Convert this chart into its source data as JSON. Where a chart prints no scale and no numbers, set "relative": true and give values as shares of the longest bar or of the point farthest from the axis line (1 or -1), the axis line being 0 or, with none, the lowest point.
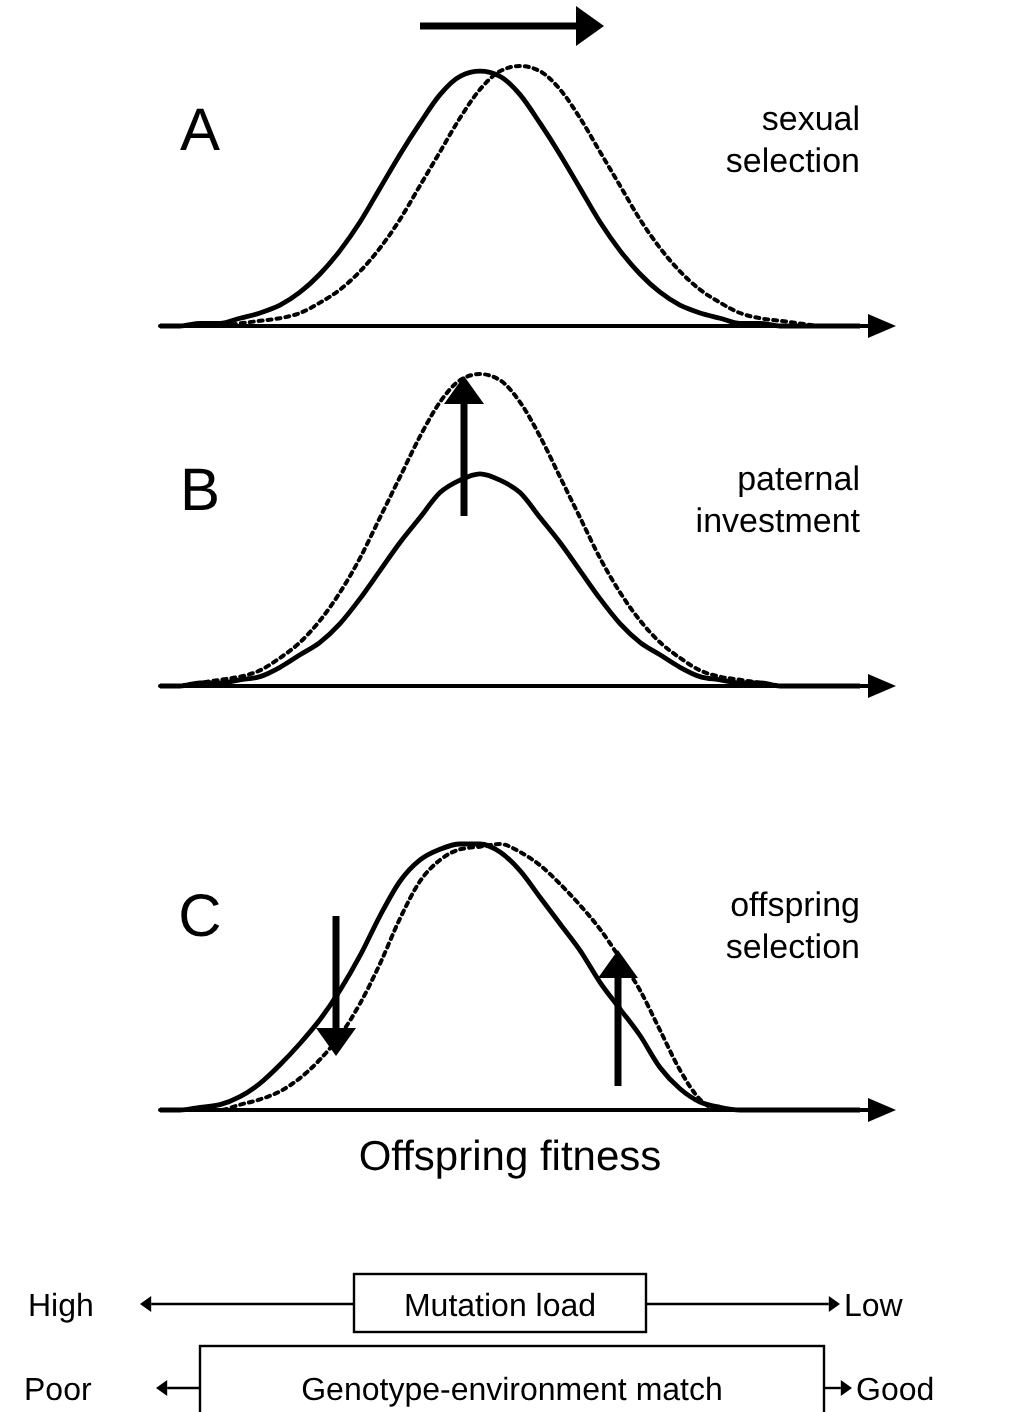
{
  "chart_data": [
    {
      "type": "line",
      "relative": true,
      "title": "A",
      "annotations": [
        "sexual selection"
      ],
      "categories": [
        null,
        null,
        null,
        null,
        null,
        null,
        null,
        null,
        null,
        null,
        null,
        null,
        null,
        null,
        null,
        null,
        null,
        null,
        null,
        null,
        null,
        null,
        null,
        null,
        null,
        null,
        null,
        null,
        null,
        null,
        null,
        null,
        null,
        null,
        null,
        null
      ],
      "series": [
        {
          "color": "#000000",
          "line_style": "solid",
          "values": [
            0,
            0,
            0.01,
            0.01,
            0.03,
            0.05,
            0.08,
            0.13,
            0.2,
            0.29,
            0.4,
            0.53,
            0.66,
            0.78,
            0.89,
            0.96,
            0.98,
            0.96,
            0.89,
            0.78,
            0.66,
            0.53,
            0.4,
            0.29,
            0.2,
            0.13,
            0.08,
            0.05,
            0.03,
            0.01,
            0.01,
            0,
            0,
            0,
            0,
            0
          ]
        },
        {
          "color": "#000000",
          "line_style": "dotted",
          "values": [
            0,
            0,
            0,
            0,
            0.01,
            0.02,
            0.03,
            0.05,
            0.09,
            0.14,
            0.21,
            0.3,
            0.41,
            0.54,
            0.67,
            0.8,
            0.91,
            0.98,
            1,
            0.98,
            0.91,
            0.8,
            0.67,
            0.54,
            0.41,
            0.3,
            0.21,
            0.14,
            0.09,
            0.05,
            0.03,
            0.02,
            0.01,
            0,
            0,
            0
          ]
        }
      ]
    },
    {
      "type": "line",
      "relative": true,
      "title": "B",
      "annotations": [
        "paternal investment"
      ],
      "categories": [
        null,
        null,
        null,
        null,
        null,
        null,
        null,
        null,
        null,
        null,
        null,
        null,
        null,
        null,
        null,
        null,
        null,
        null,
        null,
        null,
        null,
        null,
        null,
        null,
        null,
        null,
        null,
        null,
        null,
        null,
        null,
        null,
        null,
        null,
        null,
        null
      ],
      "series": [
        {
          "color": "#000000",
          "line_style": "solid",
          "values": [
            0,
            0,
            0.01,
            0.01,
            0.02,
            0.03,
            0.06,
            0.1,
            0.14,
            0.2,
            0.28,
            0.37,
            0.46,
            0.54,
            0.62,
            0.66,
            0.68,
            0.66,
            0.62,
            0.54,
            0.46,
            0.37,
            0.28,
            0.2,
            0.14,
            0.1,
            0.06,
            0.03,
            0.02,
            0.01,
            0.01,
            0,
            0,
            0,
            0,
            0
          ]
        },
        {
          "color": "#000000",
          "line_style": "dotted",
          "values": [
            0,
            0,
            0.01,
            0.02,
            0.03,
            0.05,
            0.09,
            0.14,
            0.21,
            0.3,
            0.41,
            0.54,
            0.67,
            0.8,
            0.91,
            0.98,
            1,
            0.98,
            0.91,
            0.8,
            0.67,
            0.54,
            0.41,
            0.3,
            0.21,
            0.14,
            0.09,
            0.05,
            0.03,
            0.02,
            0.01,
            0,
            0,
            0,
            0,
            0
          ]
        }
      ]
    },
    {
      "type": "line",
      "relative": true,
      "title": "C",
      "xlabel": "Offspring fitness",
      "annotations": [
        "offspring selection"
      ],
      "categories": [
        null,
        null,
        null,
        null,
        null,
        null,
        null,
        null,
        null,
        null,
        null,
        null,
        null,
        null,
        null,
        null,
        null,
        null,
        null,
        null,
        null,
        null,
        null,
        null,
        null,
        null,
        null,
        null,
        null,
        null,
        null,
        null,
        null,
        null,
        null,
        null
      ],
      "series": [
        {
          "color": "#000000",
          "line_style": "solid",
          "values": [
            0,
            0,
            0.01,
            0.02,
            0.05,
            0.1,
            0.17,
            0.25,
            0.34,
            0.45,
            0.58,
            0.73,
            0.86,
            0.94,
            0.98,
            1,
            1,
            0.97,
            0.9,
            0.8,
            0.7,
            0.6,
            0.48,
            0.38,
            0.28,
            0.16,
            0.08,
            0.03,
            0.01,
            0,
            0,
            0,
            0,
            0,
            0,
            0
          ]
        },
        {
          "color": "#000000",
          "line_style": "dotted",
          "values": [
            0,
            0,
            0,
            0,
            0.02,
            0.04,
            0.07,
            0.12,
            0.19,
            0.28,
            0.4,
            0.55,
            0.72,
            0.86,
            0.94,
            0.98,
            0.99,
            1,
            0.97,
            0.92,
            0.85,
            0.77,
            0.68,
            0.57,
            0.45,
            0.3,
            0.15,
            0.04,
            0,
            0,
            0,
            0,
            0,
            0,
            0,
            0
          ]
        }
      ]
    },
    {
      "type": "other",
      "annotations": [
        "High",
        "Mutation load",
        "Low",
        "Poor",
        "Genotype-environment match",
        "Good"
      ]
    }
  ]
}
